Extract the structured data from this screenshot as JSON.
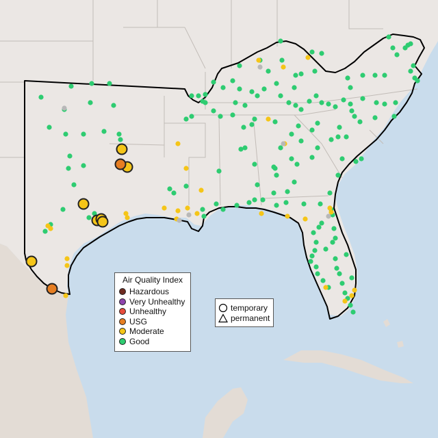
{
  "colors": {
    "ocean": "#c9dcec",
    "land": "#ebe7e4",
    "land_mexico": "#e3dcd5",
    "border": "#c2bcb7",
    "region_outline": "#000000",
    "good": "#2ecc71",
    "moderate": "#f5c518",
    "usg": "#e67e22",
    "unhealthy": "#e74c3c",
    "very_unhealthy": "#8e44ad",
    "hazardous": "#6e2c20",
    "no_data": "#b8b8b8"
  },
  "legend": {
    "title": "Air Quality Index",
    "items": [
      {
        "label": "Hazardous",
        "color": "#6e2c20"
      },
      {
        "label": "Very Unhealthy",
        "color": "#8e44ad"
      },
      {
        "label": "Unhealthy",
        "color": "#e74c3c"
      },
      {
        "label": "USG",
        "color": "#e67e22"
      },
      {
        "label": "Moderate",
        "color": "#f5c518"
      },
      {
        "label": "Good",
        "color": "#2ecc71"
      }
    ]
  },
  "shape_legend": {
    "items": [
      {
        "label": "temporary",
        "icon": "circle-icon"
      },
      {
        "label": "permanent",
        "icon": "triangle-icon"
      }
    ]
  }
}
